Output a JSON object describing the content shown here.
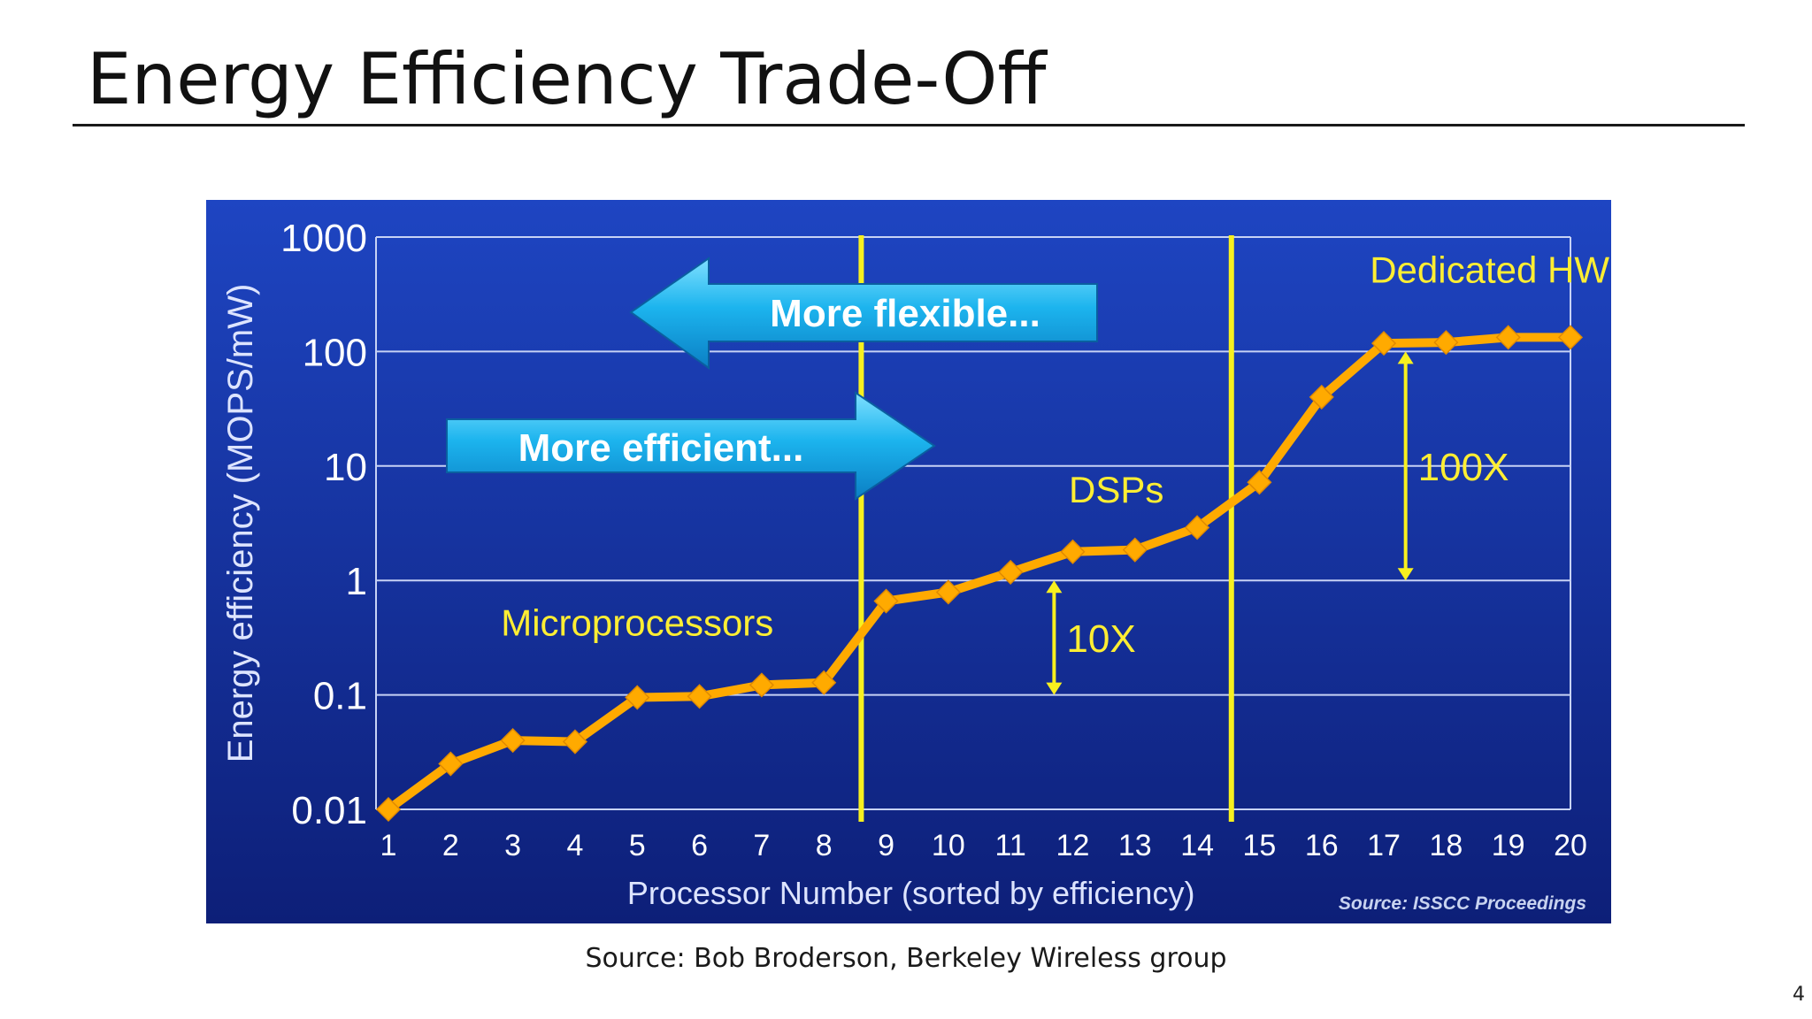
{
  "slide": {
    "title": "Energy Efficiency Trade-Off",
    "source_caption": "Source: Bob Broderson, Berkeley Wireless group",
    "page_number": "4"
  },
  "colors": {
    "background_top": "#1e45c2",
    "background_bottom": "#0d1f78",
    "series": "#ffaa00",
    "vline": "#f7f01f",
    "label_yellow": "#ffee33",
    "arrow_fill": "#1aa8e6"
  },
  "chart_data": {
    "type": "line",
    "title": "",
    "xlabel": "Processor Number (sorted by efficiency)",
    "ylabel": "Energy efficiency (MOPS/mW)",
    "y_scale": "log",
    "ylim": [
      0.01,
      1000
    ],
    "xlim": [
      1,
      20
    ],
    "y_ticks": [
      "0.01",
      "0.1",
      "1",
      "10",
      "100",
      "1000"
    ],
    "x": [
      1,
      2,
      3,
      4,
      5,
      6,
      7,
      8,
      9,
      10,
      11,
      12,
      13,
      14,
      15,
      16,
      17,
      18,
      19,
      20
    ],
    "series": [
      {
        "values": [
          0.01,
          0.025,
          0.04,
          0.039,
          0.095,
          0.097,
          0.122,
          0.128,
          0.66,
          0.79,
          1.18,
          1.78,
          1.85,
          2.9,
          7.2,
          40,
          118,
          120,
          133,
          133
        ]
      }
    ],
    "grid": "horizontal",
    "vertical_lines_x": [
      8.6,
      14.55
    ],
    "group_labels": [
      {
        "text": "Microprocessors",
        "x": 5,
        "y": 0.33
      },
      {
        "text": "DSPs",
        "x": 12.7,
        "y": 4.8
      },
      {
        "text": "Dedicated HW",
        "x": 18.7,
        "y": 400
      }
    ],
    "arrows": {
      "flexible": "More flexible...",
      "efficient": "More efficient..."
    },
    "gap_annotations": [
      {
        "text": "10X",
        "x": 11.7,
        "y_from": 0.1,
        "y_to": 1
      },
      {
        "text": "100X",
        "x": 17.35,
        "y_from": 1,
        "y_to": 100
      }
    ],
    "source_note": "Source: ISSCC Proceedings"
  }
}
